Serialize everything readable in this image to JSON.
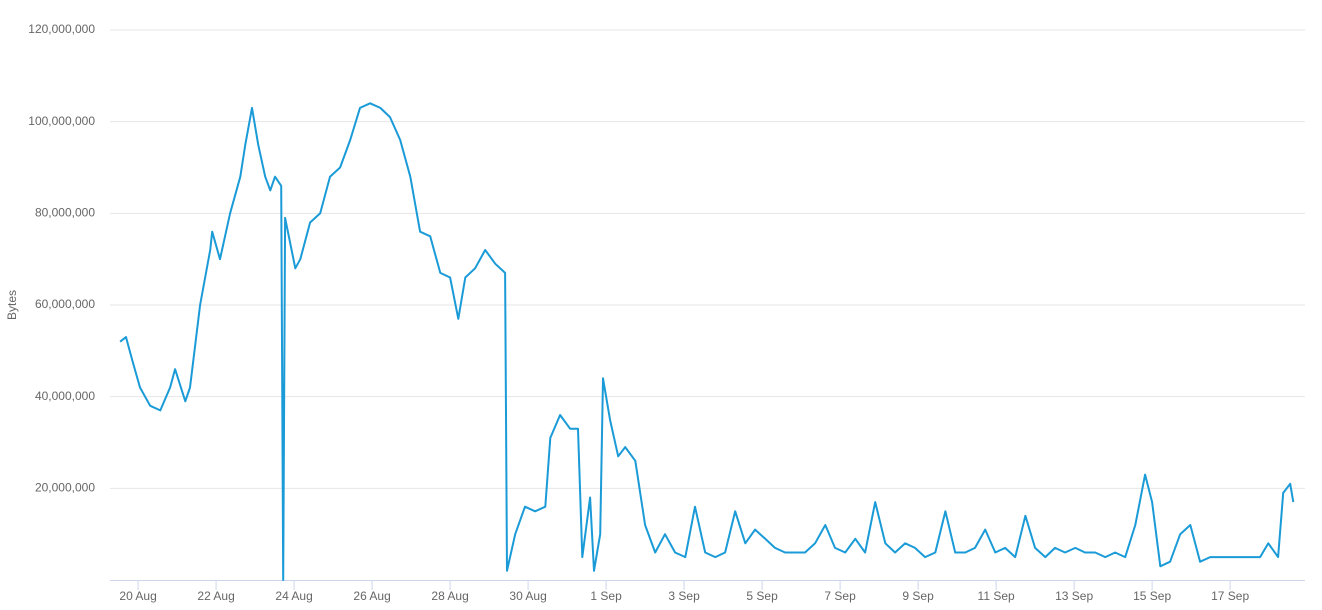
{
  "chart_data": {
    "type": "line",
    "ylabel": "Bytes",
    "color": "#1a9bd7",
    "grid": true,
    "x": [
      -0.46,
      -0.31,
      -0.15,
      0.05,
      0.31,
      0.57,
      0.82,
      0.95,
      1.21,
      1.33,
      1.59,
      1.85,
      1.9,
      2.1,
      2.36,
      2.62,
      2.75,
      2.92,
      3.08,
      3.26,
      3.39,
      3.51,
      3.67,
      3.72,
      3.77,
      4.03,
      4.16,
      4.41,
      4.67,
      4.92,
      5.18,
      5.44,
      5.69,
      5.95,
      6.21,
      6.46,
      6.72,
      6.98,
      7.23,
      7.49,
      7.75,
      8.0,
      8.21,
      8.39,
      8.64,
      8.9,
      9.16,
      9.41,
      9.46,
      9.67,
      9.92,
      10.18,
      10.44,
      10.57,
      10.82,
      11.08,
      11.28,
      11.39,
      11.59,
      11.69,
      11.85,
      11.92,
      12.1,
      12.31,
      12.49,
      12.75,
      13.0,
      13.26,
      13.51,
      13.77,
      14.03,
      14.28,
      14.54,
      14.8,
      15.05,
      15.31,
      15.57,
      15.82,
      16.08,
      16.33,
      16.59,
      16.85,
      17.1,
      17.36,
      17.62,
      17.87,
      18.13,
      18.39,
      18.64,
      18.9,
      19.16,
      19.41,
      19.67,
      19.92,
      20.18,
      20.44,
      20.7,
      20.95,
      21.21,
      21.46,
      21.72,
      21.98,
      22.23,
      22.49,
      22.75,
      23.0,
      23.26,
      23.51,
      23.77,
      24.03,
      24.28,
      24.54,
      24.8,
      25.05,
      25.31,
      25.57,
      25.82,
      26.0,
      26.21,
      26.46,
      26.72,
      26.98,
      27.23,
      27.49,
      27.75,
      28.0,
      28.26,
      28.51,
      28.77,
      28.98,
      29.23,
      29.36,
      29.54,
      29.62
    ],
    "values": [
      52000000,
      53000000,
      48000000,
      42000000,
      38000000,
      37000000,
      42000000,
      46000000,
      39000000,
      42000000,
      60000000,
      72000000,
      76000000,
      70000000,
      80000000,
      88000000,
      95000000,
      103000000,
      95000000,
      88000000,
      85000000,
      88000000,
      86000000,
      0,
      79000000,
      68000000,
      70000000,
      78000000,
      80000000,
      88000000,
      90000000,
      96000000,
      103000000,
      104000000,
      103000000,
      101000000,
      96000000,
      88000000,
      76000000,
      75000000,
      67000000,
      66000000,
      57000000,
      66000000,
      68000000,
      72000000,
      69000000,
      67000000,
      2000000,
      10000000,
      16000000,
      15000000,
      16000000,
      31000000,
      36000000,
      33000000,
      33000000,
      5000000,
      18000000,
      2000000,
      10000000,
      44000000,
      35000000,
      27000000,
      29000000,
      26000000,
      12000000,
      6000000,
      10000000,
      6000000,
      5000000,
      16000000,
      6000000,
      5000000,
      6000000,
      15000000,
      8000000,
      11000000,
      9000000,
      7000000,
      6000000,
      6000000,
      6000000,
      8000000,
      12000000,
      7000000,
      6000000,
      9000000,
      6000000,
      17000000,
      8000000,
      6000000,
      8000000,
      7000000,
      5000000,
      6000000,
      15000000,
      6000000,
      6000000,
      7000000,
      11000000,
      6000000,
      7000000,
      5000000,
      14000000,
      7000000,
      5000000,
      7000000,
      6000000,
      7000000,
      6000000,
      6000000,
      5000000,
      6000000,
      5000000,
      12000000,
      23000000,
      17000000,
      3000000,
      4000000,
      10000000,
      12000000,
      4000000,
      5000000,
      5000000,
      5000000,
      5000000,
      5000000,
      5000000,
      8000000,
      5000000,
      19000000,
      21000000,
      17000000
    ],
    "xlim": [
      -0.72,
      29.92
    ],
    "xticks": [
      {
        "value": 0,
        "label": "20 Aug"
      },
      {
        "value": 2,
        "label": "22 Aug"
      },
      {
        "value": 4,
        "label": "24 Aug"
      },
      {
        "value": 6,
        "label": "26 Aug"
      },
      {
        "value": 8,
        "label": "28 Aug"
      },
      {
        "value": 10,
        "label": "30 Aug"
      },
      {
        "value": 12,
        "label": "1 Sep"
      },
      {
        "value": 14,
        "label": "3 Sep"
      },
      {
        "value": 16,
        "label": "5 Sep"
      },
      {
        "value": 18,
        "label": "7 Sep"
      },
      {
        "value": 20,
        "label": "9 Sep"
      },
      {
        "value": 22,
        "label": "11 Sep"
      },
      {
        "value": 24,
        "label": "13 Sep"
      },
      {
        "value": 26,
        "label": "15 Sep"
      },
      {
        "value": 28,
        "label": "17 Sep"
      }
    ],
    "ylim": [
      0,
      120000000
    ],
    "yticks": [
      {
        "value": 20000000,
        "label": "20,000,000"
      },
      {
        "value": 40000000,
        "label": "40,000,000"
      },
      {
        "value": 60000000,
        "label": "60,000,000"
      },
      {
        "value": 80000000,
        "label": "80,000,000"
      },
      {
        "value": 100000000,
        "label": "100,000,000"
      },
      {
        "value": 120000000,
        "label": "120,000,000"
      }
    ]
  }
}
